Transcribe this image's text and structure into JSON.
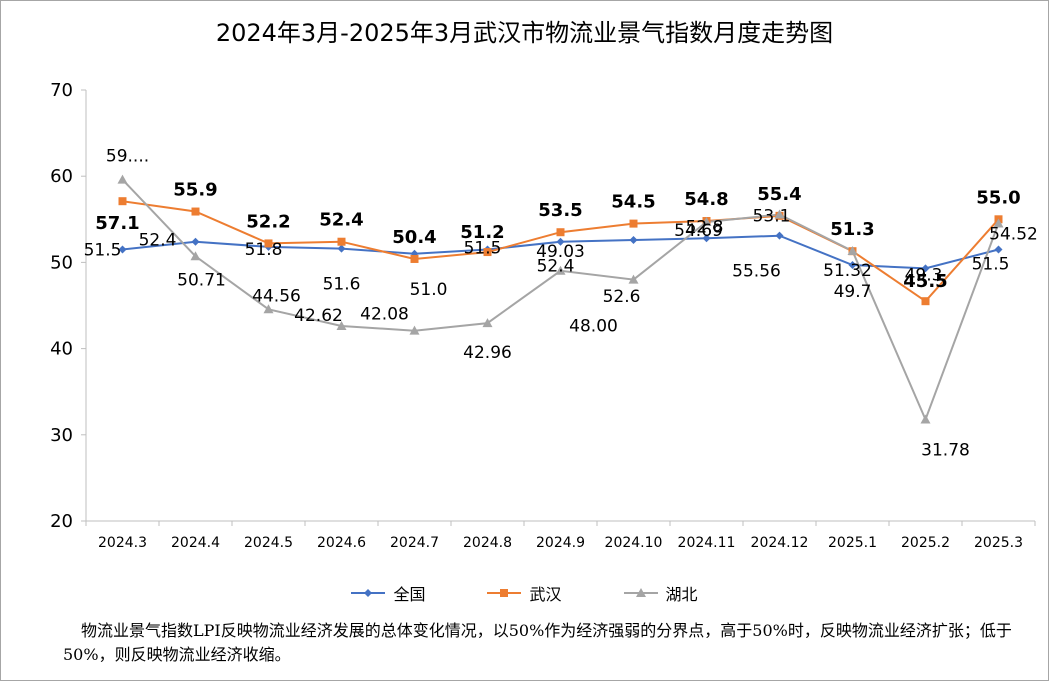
{
  "chart_data": {
    "type": "line",
    "title": "2024年3月-2025年3月武汉市物流业景气指数月度走势图",
    "categories": [
      "2024.3",
      "2024.4",
      "2024.5",
      "2024.6",
      "2024.7",
      "2024.8",
      "2024.9",
      "2024.10",
      "2024.11",
      "2024.12",
      "2025.1",
      "2025.2",
      "2025.3"
    ],
    "ylim": [
      20,
      70
    ],
    "yticks": [
      "20",
      "30",
      "40",
      "50",
      "60",
      "70"
    ],
    "grid": false,
    "legend_position": "bottom",
    "series": [
      {
        "name": "全国",
        "color": "#4472c4",
        "marker": "diamond",
        "values": [
          51.5,
          52.4,
          51.8,
          51.6,
          51.0,
          51.5,
          52.4,
          52.6,
          52.8,
          53.1,
          49.7,
          49.3,
          51.5
        ],
        "labels": [
          "51.5",
          "52.4",
          "51.8",
          "51.6",
          "51.0",
          "51.5",
          "52.4",
          "52.6",
          "52.8",
          "53.1",
          "49.7",
          "49.3",
          "51.5"
        ]
      },
      {
        "name": "武汉",
        "color": "#ed7d31",
        "marker": "square",
        "values": [
          57.1,
          55.9,
          52.2,
          52.4,
          50.4,
          51.2,
          53.5,
          54.5,
          54.8,
          55.4,
          51.3,
          45.5,
          55.0
        ],
        "labels": [
          "57.1",
          "55.9",
          "52.2",
          "52.4",
          "50.4",
          "51.2",
          "53.5",
          "54.5",
          "54.8",
          "55.4",
          "51.3",
          "45.5",
          "55.0"
        ]
      },
      {
        "name": "湖北",
        "color": "#a5a5a5",
        "marker": "triangle",
        "values": [
          59.6,
          50.71,
          44.56,
          42.62,
          42.08,
          42.96,
          49.03,
          48.0,
          54.69,
          55.56,
          51.32,
          31.78,
          54.52
        ],
        "labels": [
          "59....",
          "50.71",
          "44.56",
          "42.62",
          "42.08",
          "42.96",
          "49.03",
          "48.00",
          "54.69",
          "55.56",
          "51.32",
          "31.78",
          "54.52"
        ]
      }
    ]
  },
  "note": "物流业景气指数LPI反映物流业经济发展的总体变化情况，以50%作为经济强弱的分界点，高于50%时，反映物流业经济扩张；低于50%，则反映物流业经济收缩。"
}
